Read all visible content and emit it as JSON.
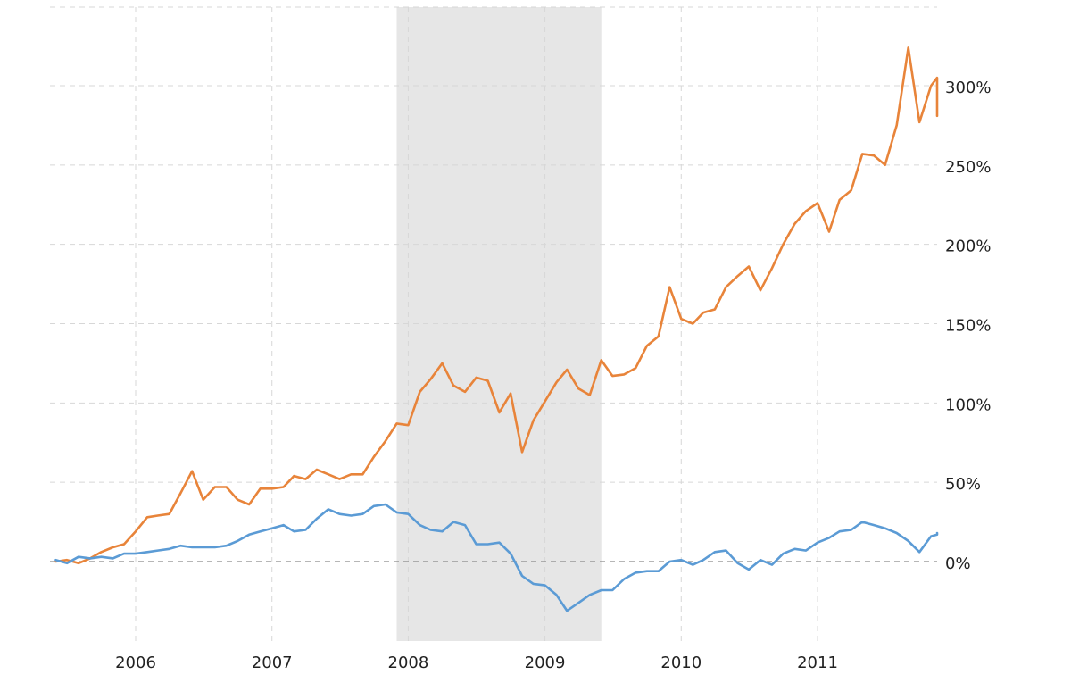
{
  "chart_data": {
    "type": "line",
    "title": "",
    "xlabel": "",
    "ylabel": "",
    "y_unit": "%",
    "xlim": [
      "2005-06-01",
      "2011-12-01"
    ],
    "ylim": [
      -50,
      350
    ],
    "grid": true,
    "legend": "none",
    "x_ticks": [
      {
        "date": "2006-01-01",
        "label": "2006"
      },
      {
        "date": "2007-01-01",
        "label": "2007"
      },
      {
        "date": "2008-01-01",
        "label": "2008"
      },
      {
        "date": "2009-01-01",
        "label": "2009"
      },
      {
        "date": "2010-01-01",
        "label": "2010"
      },
      {
        "date": "2011-01-01",
        "label": "2011"
      }
    ],
    "y_ticks": [
      {
        "value": 0,
        "label": "0%"
      },
      {
        "value": 50,
        "label": "50%"
      },
      {
        "value": 100,
        "label": "100%"
      },
      {
        "value": 150,
        "label": "150%"
      },
      {
        "value": 200,
        "label": "200%"
      },
      {
        "value": 250,
        "label": "250%"
      },
      {
        "value": 300,
        "label": "300%"
      }
    ],
    "recession_band": {
      "start": "2007-12-01",
      "end": "2009-06-01",
      "color": "#e6e6e6"
    },
    "series": [
      {
        "color": "#e8843a",
        "points": [
          [
            "2005-06-01",
            0
          ],
          [
            "2005-07-01",
            1
          ],
          [
            "2005-08-01",
            -1
          ],
          [
            "2005-09-01",
            2
          ],
          [
            "2005-10-01",
            6
          ],
          [
            "2005-11-01",
            9
          ],
          [
            "2005-12-01",
            11
          ],
          [
            "2006-01-01",
            19
          ],
          [
            "2006-02-01",
            28
          ],
          [
            "2006-03-01",
            29
          ],
          [
            "2006-04-01",
            30
          ],
          [
            "2006-05-01",
            43
          ],
          [
            "2006-06-01",
            57
          ],
          [
            "2006-07-01",
            39
          ],
          [
            "2006-08-01",
            47
          ],
          [
            "2006-09-01",
            47
          ],
          [
            "2006-10-01",
            39
          ],
          [
            "2006-11-01",
            36
          ],
          [
            "2006-12-01",
            46
          ],
          [
            "2007-01-01",
            46
          ],
          [
            "2007-02-01",
            47
          ],
          [
            "2007-03-01",
            54
          ],
          [
            "2007-04-01",
            52
          ],
          [
            "2007-05-01",
            58
          ],
          [
            "2007-06-01",
            55
          ],
          [
            "2007-07-01",
            52
          ],
          [
            "2007-08-01",
            55
          ],
          [
            "2007-09-01",
            55
          ],
          [
            "2007-10-01",
            66
          ],
          [
            "2007-11-01",
            76
          ],
          [
            "2007-12-01",
            87
          ],
          [
            "2008-01-01",
            86
          ],
          [
            "2008-02-01",
            107
          ],
          [
            "2008-03-01",
            115
          ],
          [
            "2008-04-01",
            125
          ],
          [
            "2008-05-01",
            111
          ],
          [
            "2008-06-01",
            107
          ],
          [
            "2008-07-01",
            116
          ],
          [
            "2008-08-01",
            114
          ],
          [
            "2008-09-01",
            94
          ],
          [
            "2008-10-01",
            106
          ],
          [
            "2008-11-01",
            69
          ],
          [
            "2008-12-01",
            89
          ],
          [
            "2009-01-01",
            101
          ],
          [
            "2009-02-01",
            113
          ],
          [
            "2009-03-01",
            121
          ],
          [
            "2009-04-01",
            109
          ],
          [
            "2009-05-01",
            105
          ],
          [
            "2009-06-01",
            127
          ],
          [
            "2009-07-01",
            117
          ],
          [
            "2009-08-01",
            118
          ],
          [
            "2009-09-01",
            122
          ],
          [
            "2009-10-01",
            136
          ],
          [
            "2009-11-01",
            142
          ],
          [
            "2009-12-01",
            173
          ],
          [
            "2010-01-01",
            153
          ],
          [
            "2010-02-01",
            150
          ],
          [
            "2010-03-01",
            157
          ],
          [
            "2010-04-01",
            159
          ],
          [
            "2010-05-01",
            173
          ],
          [
            "2010-06-01",
            180
          ],
          [
            "2010-07-01",
            186
          ],
          [
            "2010-08-01",
            171
          ],
          [
            "2010-09-01",
            185
          ],
          [
            "2010-10-01",
            200
          ],
          [
            "2010-11-01",
            213
          ],
          [
            "2010-12-01",
            221
          ],
          [
            "2011-01-01",
            226
          ],
          [
            "2011-02-01",
            208
          ],
          [
            "2011-03-01",
            228
          ],
          [
            "2011-04-01",
            234
          ],
          [
            "2011-05-01",
            257
          ],
          [
            "2011-06-01",
            256
          ],
          [
            "2011-07-01",
            250
          ],
          [
            "2011-08-01",
            275
          ],
          [
            "2011-09-01",
            324
          ],
          [
            "2011-10-01",
            277
          ],
          [
            "2011-11-01",
            300
          ],
          [
            "2011-12-01",
            305
          ],
          [
            "2012-01-01",
            281
          ]
        ]
      },
      {
        "color": "#5b9bd5",
        "points": [
          [
            "2005-06-01",
            1
          ],
          [
            "2005-07-01",
            -1
          ],
          [
            "2005-08-01",
            3
          ],
          [
            "2005-09-01",
            2
          ],
          [
            "2005-10-01",
            3
          ],
          [
            "2005-11-01",
            2
          ],
          [
            "2005-12-01",
            5
          ],
          [
            "2006-01-01",
            5
          ],
          [
            "2006-02-01",
            6
          ],
          [
            "2006-03-01",
            7
          ],
          [
            "2006-04-01",
            8
          ],
          [
            "2006-05-01",
            10
          ],
          [
            "2006-06-01",
            9
          ],
          [
            "2006-07-01",
            9
          ],
          [
            "2006-08-01",
            9
          ],
          [
            "2006-09-01",
            10
          ],
          [
            "2006-10-01",
            13
          ],
          [
            "2006-11-01",
            17
          ],
          [
            "2006-12-01",
            19
          ],
          [
            "2007-01-01",
            21
          ],
          [
            "2007-02-01",
            23
          ],
          [
            "2007-03-01",
            19
          ],
          [
            "2007-04-01",
            20
          ],
          [
            "2007-05-01",
            27
          ],
          [
            "2007-06-01",
            33
          ],
          [
            "2007-07-01",
            30
          ],
          [
            "2007-08-01",
            29
          ],
          [
            "2007-09-01",
            30
          ],
          [
            "2007-10-01",
            35
          ],
          [
            "2007-11-01",
            36
          ],
          [
            "2007-12-01",
            31
          ],
          [
            "2008-01-01",
            30
          ],
          [
            "2008-02-01",
            23
          ],
          [
            "2008-03-01",
            20
          ],
          [
            "2008-04-01",
            19
          ],
          [
            "2008-05-01",
            25
          ],
          [
            "2008-06-01",
            23
          ],
          [
            "2008-07-01",
            11
          ],
          [
            "2008-08-01",
            11
          ],
          [
            "2008-09-01",
            12
          ],
          [
            "2008-10-01",
            5
          ],
          [
            "2008-11-01",
            -9
          ],
          [
            "2008-12-01",
            -14
          ],
          [
            "2009-01-01",
            -15
          ],
          [
            "2009-02-01",
            -21
          ],
          [
            "2009-03-01",
            -31
          ],
          [
            "2009-04-01",
            -26
          ],
          [
            "2009-05-01",
            -21
          ],
          [
            "2009-06-01",
            -18
          ],
          [
            "2009-07-01",
            -18
          ],
          [
            "2009-08-01",
            -11
          ],
          [
            "2009-09-01",
            -7
          ],
          [
            "2009-10-01",
            -6
          ],
          [
            "2009-11-01",
            -6
          ],
          [
            "2009-12-01",
            0
          ],
          [
            "2010-01-01",
            1
          ],
          [
            "2010-02-01",
            -2
          ],
          [
            "2010-03-01",
            1
          ],
          [
            "2010-04-01",
            6
          ],
          [
            "2010-05-01",
            7
          ],
          [
            "2010-06-01",
            -1
          ],
          [
            "2010-07-01",
            -5
          ],
          [
            "2010-08-01",
            1
          ],
          [
            "2010-09-01",
            -2
          ],
          [
            "2010-10-01",
            5
          ],
          [
            "2010-11-01",
            8
          ],
          [
            "2010-12-01",
            7
          ],
          [
            "2011-01-01",
            12
          ],
          [
            "2011-02-01",
            15
          ],
          [
            "2011-03-01",
            19
          ],
          [
            "2011-04-01",
            20
          ],
          [
            "2011-05-01",
            25
          ],
          [
            "2011-06-01",
            23
          ],
          [
            "2011-07-01",
            21
          ],
          [
            "2011-08-01",
            18
          ],
          [
            "2011-09-01",
            13
          ],
          [
            "2011-10-01",
            6
          ],
          [
            "2011-11-01",
            16
          ],
          [
            "2011-12-01",
            17
          ],
          [
            "2012-01-01",
            18
          ]
        ]
      }
    ]
  }
}
